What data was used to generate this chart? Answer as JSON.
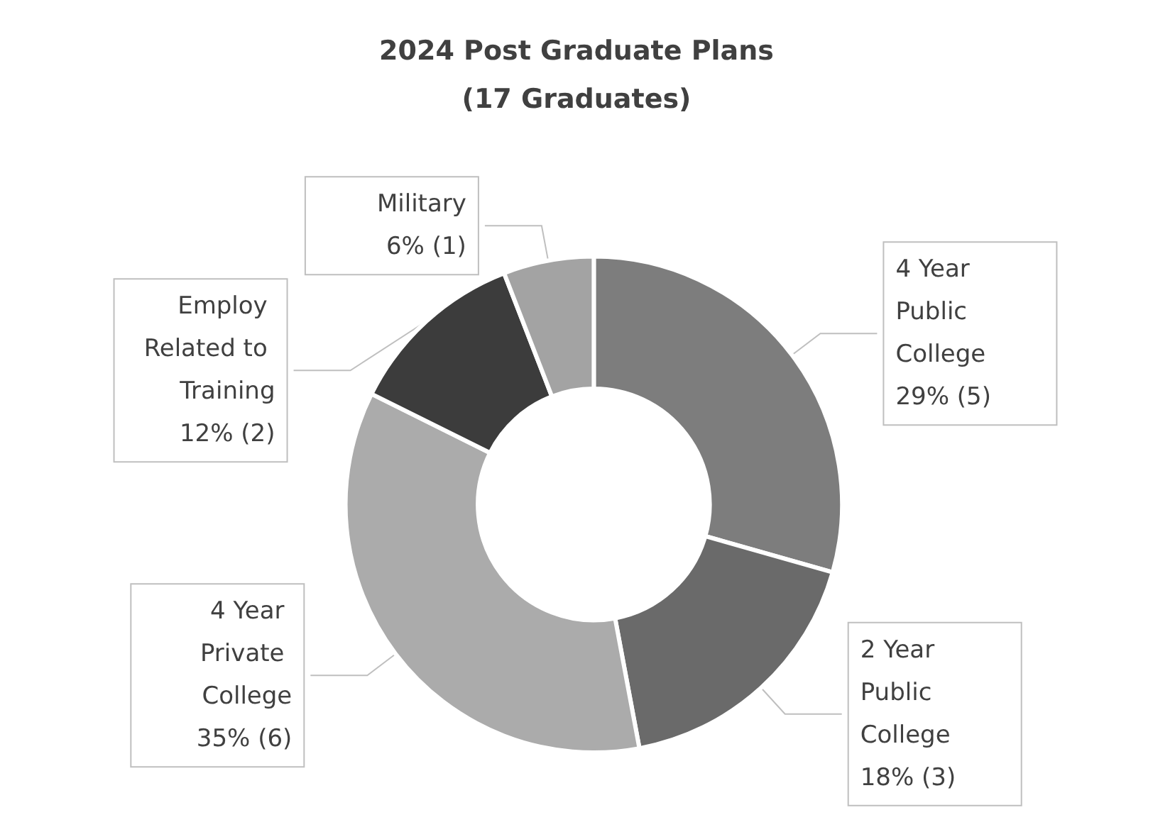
{
  "chart_data": {
    "type": "donut",
    "title": "2024 Post Graduate Plans\n(17 Graduates)",
    "categories": [
      "4 Year Public College",
      "2 Year Public College",
      "4 Year Private College",
      "Employ Related to Training",
      "Military"
    ],
    "values": [
      5,
      3,
      6,
      2,
      1
    ],
    "value_labels": [
      "29% (5)",
      "18% (3)",
      "35% (6)",
      "12% (2)",
      "6% (1)"
    ],
    "colors": [
      "#7d7d7d",
      "#6a6a6a",
      "#ababab",
      "#3c3c3c",
      "#a3a3a3"
    ],
    "legend": false
  }
}
